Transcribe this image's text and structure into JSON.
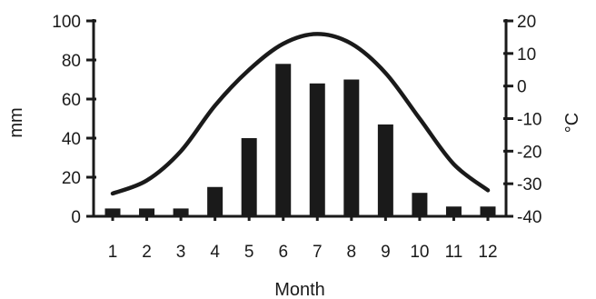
{
  "chart_data": {
    "type": "bar",
    "xlabel": "Month",
    "ylabel": "mm",
    "y2label": "°C",
    "categories": [
      "1",
      "2",
      "3",
      "4",
      "5",
      "6",
      "7",
      "8",
      "9",
      "10",
      "11",
      "12"
    ],
    "ylim": [
      0,
      100
    ],
    "y2lim": [
      -40,
      20
    ],
    "yticks": [
      0,
      20,
      40,
      60,
      80,
      100
    ],
    "y2ticks": [
      -40,
      -30,
      -20,
      -10,
      0,
      10,
      20
    ],
    "grid": false,
    "legend": "none",
    "bar_color": "#1a1a1a",
    "line_color": "#1a1a1a",
    "series": [
      {
        "type": "bar",
        "axis": "left",
        "values": [
          4,
          4,
          4,
          15,
          40,
          78,
          68,
          70,
          47,
          12,
          5,
          5
        ]
      },
      {
        "type": "line",
        "axis": "right",
        "values": [
          -33,
          -29,
          -20,
          -6,
          5,
          13,
          16,
          13,
          4,
          -10,
          -24,
          -32
        ]
      }
    ]
  }
}
